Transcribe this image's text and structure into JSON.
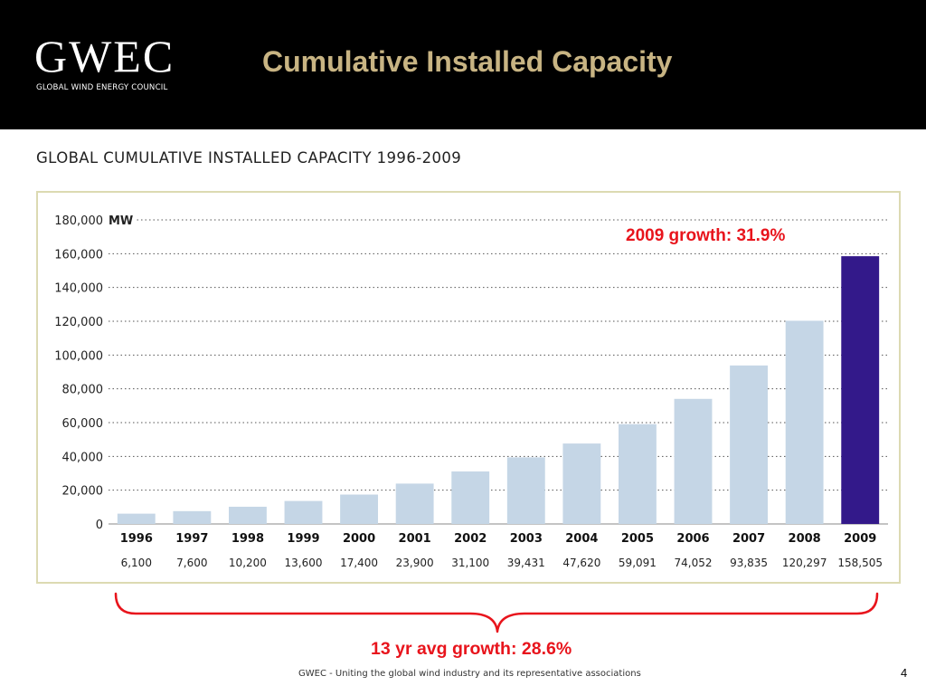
{
  "header": {
    "logo_word": "GWEC",
    "logo_subtitle": "GLOBAL WIND ENERGY COUNCIL",
    "slide_title": "Cumulative Installed Capacity"
  },
  "chart_heading": "GLOBAL CUMULATIVE INSTALLED CAPACITY 1996-2009",
  "colors": {
    "header_bg": "#000000",
    "title_gold": "#c8b483",
    "bar": "#c5d6e6",
    "bar_highlight": "#33198a",
    "frame_border": "#dcdab2",
    "annotation_red": "#e8141c"
  },
  "chart_data": {
    "type": "bar",
    "title": "GLOBAL CUMULATIVE INSTALLED CAPACITY 1996-2009",
    "ylabel": "MW",
    "xlabel": "",
    "ylim": [
      0,
      180000
    ],
    "y_ticks": [
      0,
      20000,
      40000,
      60000,
      80000,
      100000,
      120000,
      140000,
      160000,
      180000
    ],
    "y_tick_labels": [
      "0",
      "20,000",
      "40,000",
      "60,000",
      "80,000",
      "100,000",
      "120,000",
      "140,000",
      "160,000",
      "180,000"
    ],
    "grid": "horizontal dotted",
    "categories": [
      "1996",
      "1997",
      "1998",
      "1999",
      "2000",
      "2001",
      "2002",
      "2003",
      "2004",
      "2005",
      "2006",
      "2007",
      "2008",
      "2009"
    ],
    "values": [
      6100,
      7600,
      10200,
      13600,
      17400,
      23900,
      31100,
      39431,
      47620,
      59091,
      74052,
      93835,
      120297,
      158505
    ],
    "value_labels": [
      "6,100",
      "7,600",
      "10,200",
      "13,600",
      "17,400",
      "23,900",
      "31,100",
      "39,431",
      "47,620",
      "59,091",
      "74,052",
      "93,835",
      "120,297",
      "158,505"
    ],
    "highlight_category": "2009"
  },
  "annotations": {
    "growth_2009": "2009 growth: 31.9%",
    "avg_growth": "13 yr avg growth: 28.6%"
  },
  "footer": {
    "text": "GWEC - Uniting the global wind industry and its representative associations",
    "page_number": "4"
  }
}
